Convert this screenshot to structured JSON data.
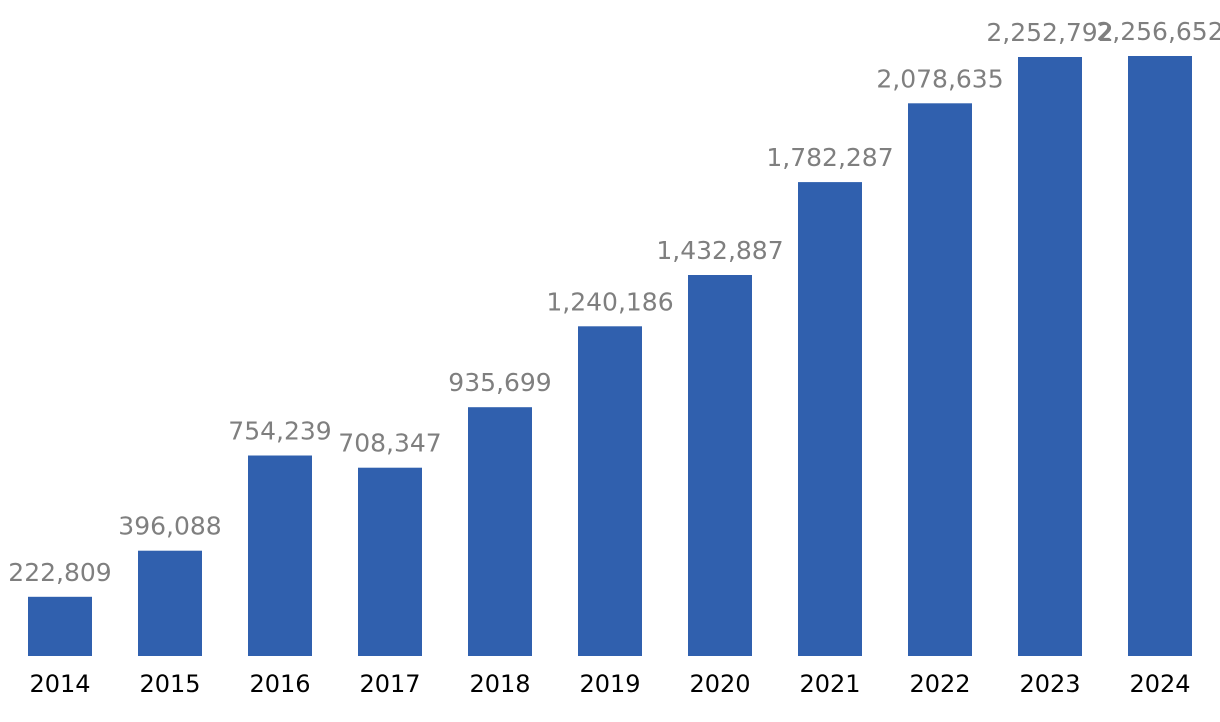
{
  "chart_data": {
    "type": "bar",
    "title": "",
    "xlabel": "",
    "ylabel": "",
    "categories": [
      "2014",
      "2015",
      "2016",
      "2017",
      "2018",
      "2019",
      "2020",
      "2021",
      "2022",
      "2023",
      "2024"
    ],
    "values": [
      222809,
      396088,
      754239,
      708347,
      935699,
      1240186,
      1432887,
      1782287,
      2078635,
      2252792,
      2256652
    ],
    "data_labels": [
      "222,809",
      "396,088",
      "754,239",
      "708,347",
      "935,699",
      "1,240,186",
      "1,432,887",
      "1,782,287",
      "2,078,635",
      "2,252,792",
      "2,256,652"
    ],
    "ylim": [
      0,
      2256652
    ],
    "grid": false,
    "legend": "none",
    "bar_color": "#3060ae",
    "label_color": "#7f7f7f"
  }
}
